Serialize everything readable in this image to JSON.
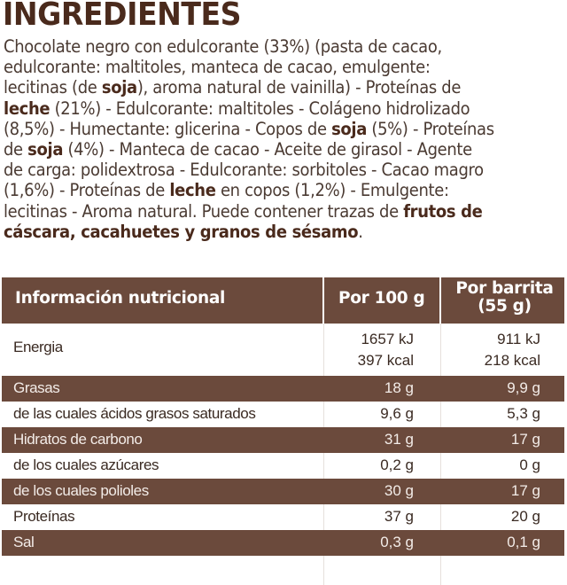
{
  "title": "INGREDIENTES",
  "ingredients": {
    "segments": [
      {
        "text": "Chocolate negro con edulcorante (33%) (pasta de cacao, edulcorante: maltitoles, manteca de cacao, emulgente: lecitinas (de ",
        "bold": false
      },
      {
        "text": "soja",
        "bold": true
      },
      {
        "text": "), aroma natural de vainilla) - Proteínas de ",
        "bold": false
      },
      {
        "text": "leche",
        "bold": true
      },
      {
        "text": " (21%) - Edulcorante: maltitoles - Colágeno hidrolizado (8,5%) - Humectante: glicerina - Copos de ",
        "bold": false
      },
      {
        "text": "soja",
        "bold": true
      },
      {
        "text": " (5%) - Proteínas de ",
        "bold": false
      },
      {
        "text": "soja",
        "bold": true
      },
      {
        "text": " (4%) - Manteca de cacao - Aceite de girasol - Agente de carga: polidextrosa - Edulcorante: sorbitoles - Cacao magro (1,6%) - Proteínas de ",
        "bold": false
      },
      {
        "text": "leche",
        "bold": true
      },
      {
        "text": " en copos (1,2%) - Emulgente: lecitinas - Aroma natural. Puede contener trazas de ",
        "bold": false
      },
      {
        "text": "frutos de cáscara, cacahuetes y granos de sésamo",
        "bold": true
      },
      {
        "text": ".",
        "bold": false
      }
    ],
    "lines": [
      [
        {
          "t": "Chocolate negro con edulcorante (33%) (pasta de cacao,",
          "b": false
        }
      ],
      [
        {
          "t": "edulcorante: maltitoles, manteca de cacao, emulgente:",
          "b": false
        }
      ],
      [
        {
          "t": "lecitinas (de ",
          "b": false
        },
        {
          "t": "soja",
          "b": true
        },
        {
          "t": "), aroma natural de vainilla) - Proteínas de",
          "b": false
        }
      ],
      [
        {
          "t": "leche",
          "b": true
        },
        {
          "t": " (21%) - Edulcorante: maltitoles - Colágeno hidrolizado",
          "b": false
        }
      ],
      [
        {
          "t": "(8,5%) - Humectante: glicerina - Copos de ",
          "b": false
        },
        {
          "t": "soja",
          "b": true
        },
        {
          "t": " (5%) - Proteínas",
          "b": false
        }
      ],
      [
        {
          "t": "de ",
          "b": false
        },
        {
          "t": "soja",
          "b": true
        },
        {
          "t": " (4%) - Manteca de cacao - Aceite de girasol - Agente",
          "b": false
        }
      ],
      [
        {
          "t": "de carga: polidextrosa - Edulcorante: sorbitoles - Cacao magro",
          "b": false
        }
      ],
      [
        {
          "t": "(1,6%) - Proteínas de ",
          "b": false
        },
        {
          "t": "leche",
          "b": true
        },
        {
          "t": " en copos (1,2%) - Emulgente:",
          "b": false
        }
      ],
      [
        {
          "t": "lecitinas - Aroma natural. Puede contener trazas de ",
          "b": false
        },
        {
          "t": "frutos de",
          "b": true
        }
      ],
      [
        {
          "t": "cáscara, cacahuetes y granos de sésamo",
          "b": true
        },
        {
          "t": ".",
          "b": false
        }
      ]
    ]
  },
  "nutrition_table": {
    "headers": {
      "nutrient": "Información nutricional",
      "per_100g": "Por 100 g",
      "per_bar_line1": "Por barrita",
      "per_bar_line2": "(55 g)"
    },
    "rows": [
      {
        "label": "Energia",
        "per_100g": [
          "1657 kJ",
          "397 kcal"
        ],
        "per_bar": [
          "911 kJ",
          "218 kcal"
        ],
        "style": "light"
      },
      {
        "label": "Grasas",
        "per_100g": "18 g",
        "per_bar": "9,9 g",
        "style": "dark"
      },
      {
        "label": "de las cuales ácidos grasos saturados",
        "per_100g": "9,6 g",
        "per_bar": "5,3 g",
        "style": "light"
      },
      {
        "label": "Hidratos de carbono",
        "per_100g": "31 g",
        "per_bar": "17 g",
        "style": "dark"
      },
      {
        "label": "de los cuales azúcares",
        "per_100g": "0,2 g",
        "per_bar": "0 g",
        "style": "light"
      },
      {
        "label": "de los cuales polioles",
        "per_100g": "30 g",
        "per_bar": "17 g",
        "style": "dark"
      },
      {
        "label": "Proteínas",
        "per_100g": "37 g",
        "per_bar": "20 g",
        "style": "light"
      },
      {
        "label": "Sal",
        "per_100g": "0,3 g",
        "per_bar": "0,1 g",
        "style": "dark"
      }
    ]
  },
  "colors": {
    "brand_brown": "#6b4a3c",
    "title_brown": "#4a2a1c",
    "text": "#4a3a32"
  }
}
